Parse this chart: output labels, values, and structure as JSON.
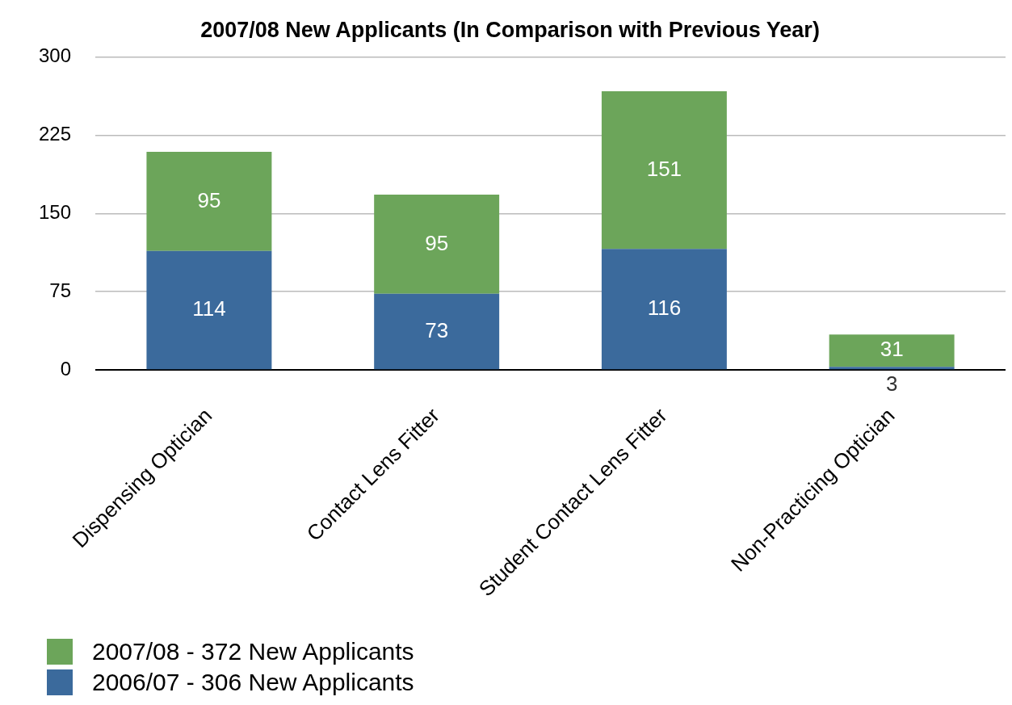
{
  "chart_data": {
    "type": "bar",
    "title": "2007/08 New Applicants (In Comparison with Previous Year)",
    "categories": [
      "Dispensing Optician",
      "Contact Lens Fitter",
      "Student Contact Lens Fitter",
      "Non-Practicing Optician"
    ],
    "series": [
      {
        "name": "2006/07 - 306 New Applicants",
        "color": "#3b6a9c",
        "values": [
          114,
          73,
          116,
          3
        ]
      },
      {
        "name": "2007/08 - 372 New Applicants",
        "color": "#6ca55a",
        "values": [
          95,
          95,
          151,
          31
        ]
      }
    ],
    "stacked": true,
    "ylim": [
      0,
      300
    ],
    "yticks": [
      0,
      75,
      150,
      225,
      300
    ],
    "grid": "y",
    "legend": "bottom left",
    "data_labels": true
  }
}
